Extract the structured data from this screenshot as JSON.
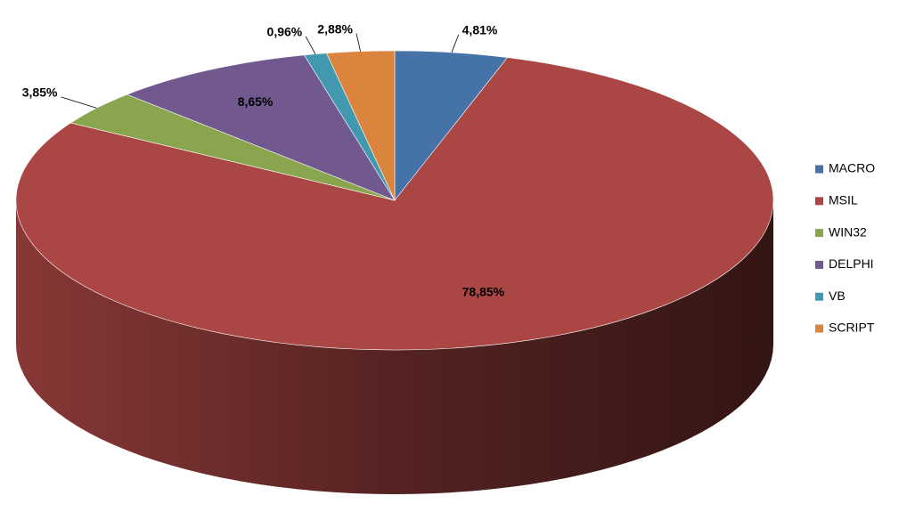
{
  "chart_data": {
    "type": "pie",
    "categories": [
      "MACRO",
      "MSIL",
      "WIN32",
      "DELPHI",
      "VB",
      "SCRIPT"
    ],
    "values": [
      4.81,
      78.85,
      3.85,
      8.65,
      0.96,
      2.88
    ],
    "value_labels": [
      "4,81%",
      "78,85%",
      "3,85%",
      "8,65%",
      "0,96%",
      "2,88%"
    ],
    "colors": [
      "#4572a7",
      "#aa4643",
      "#89a54e",
      "#71588f",
      "#4198af",
      "#db843d"
    ],
    "legend": "right"
  }
}
